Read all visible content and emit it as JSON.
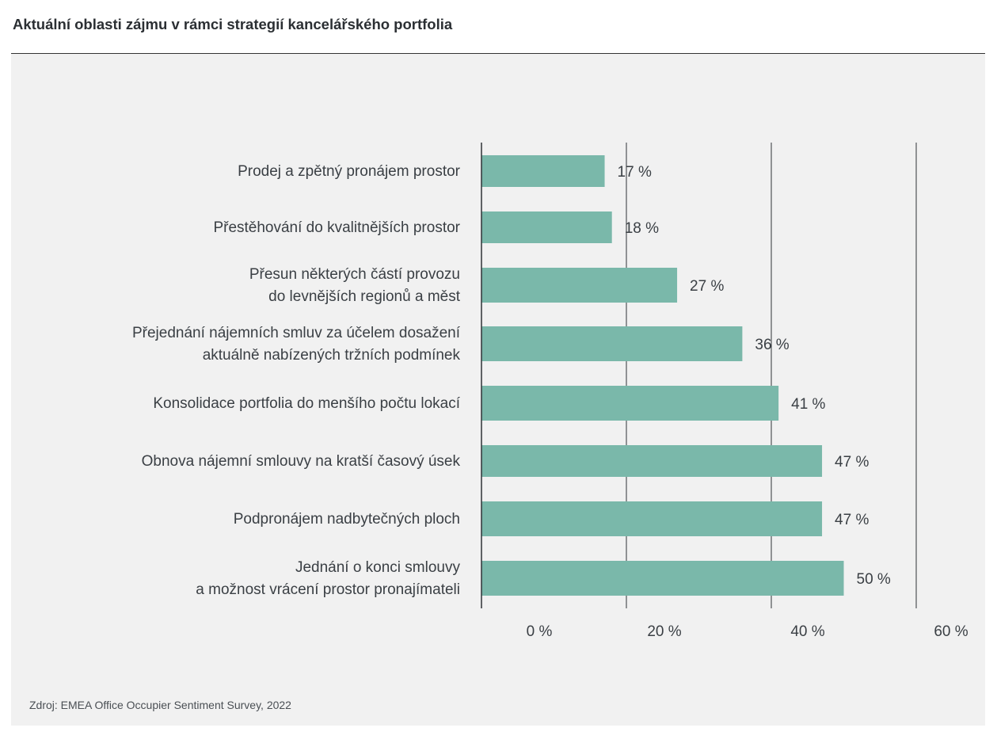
{
  "title": "Aktuální oblasti zájmu v rámci strategií kancelářského portfolia",
  "source": "Zdroj: EMEA Office Occupier Sentiment Survey, 2022",
  "chart_data": {
    "type": "bar",
    "orientation": "horizontal",
    "categories": [
      [
        "Prodej a zpětný pronájem prostor"
      ],
      [
        "Přestěhování do kvalitnějších prostor"
      ],
      [
        "Přesun některých částí provozu",
        "do levnějších regionů a měst"
      ],
      [
        "Přejednání nájemních smluv za účelem dosažení",
        "aktuálně nabízených tržních podmínek"
      ],
      [
        "Konsolidace portfolia do menšího počtu lokací"
      ],
      [
        "Obnova nájemní smlouvy na kratší časový úsek"
      ],
      [
        "Podpronájem nadbytečných ploch"
      ],
      [
        "Jednání o konci smlouvy",
        "a možnost vrácení prostor pronajímateli"
      ]
    ],
    "values": [
      17,
      18,
      27,
      36,
      41,
      47,
      47,
      50
    ],
    "value_labels": [
      "17 %",
      "18 %",
      "27 %",
      "36 %",
      "41 %",
      "47 %",
      "47 %",
      "50 %"
    ],
    "xlim": [
      0,
      60
    ],
    "xticks": [
      0,
      20,
      40,
      60
    ],
    "xtick_labels": [
      "0 %",
      "20 %",
      "40 %",
      "60 %"
    ],
    "grid": true,
    "bar_color": "#7ab8aa"
  }
}
